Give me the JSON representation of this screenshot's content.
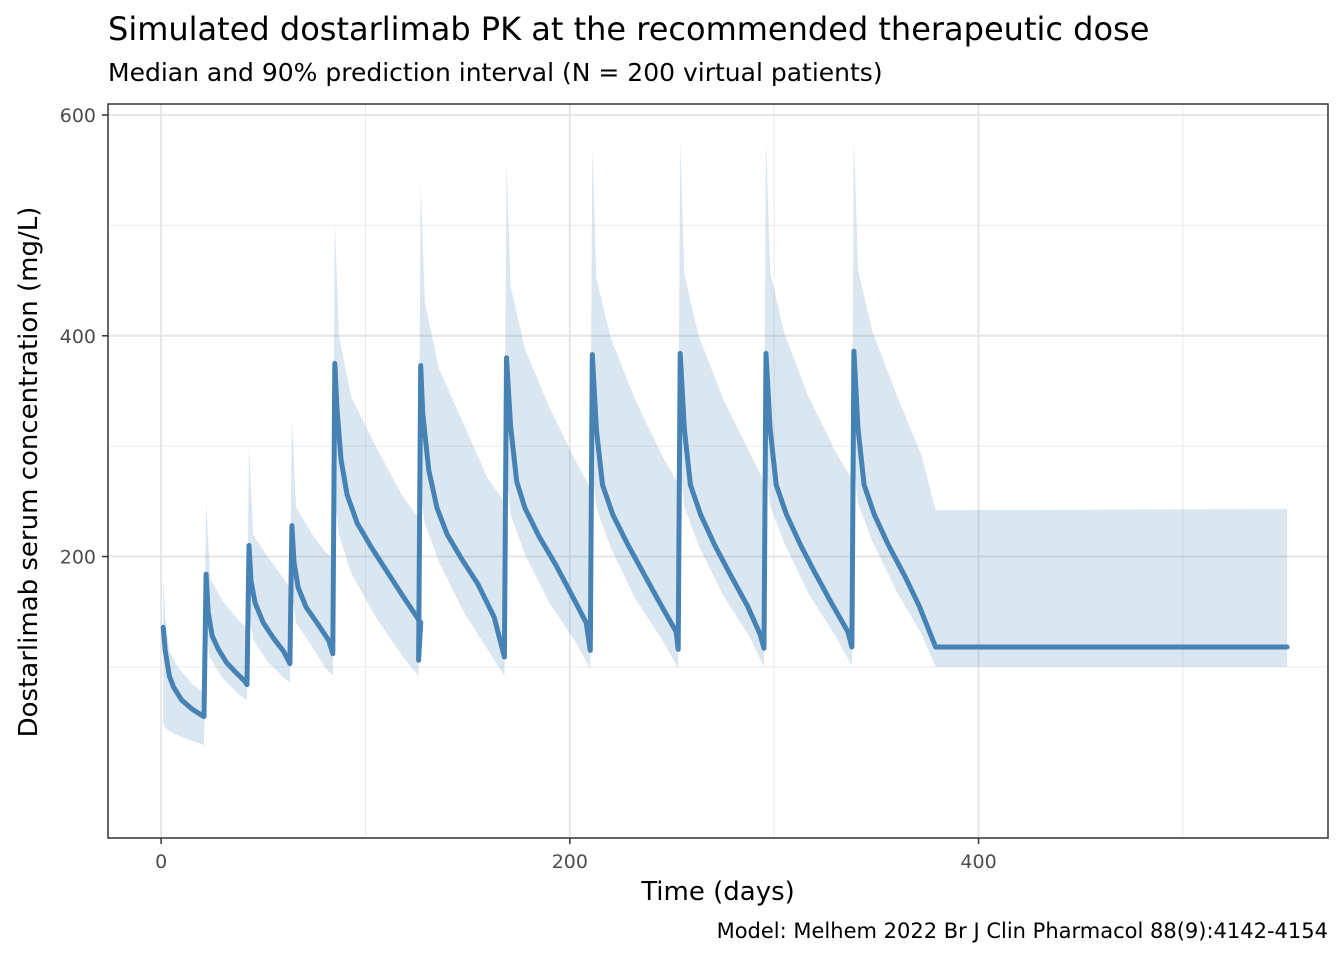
{
  "chart_data": {
    "type": "line",
    "title": "Simulated dostarlimab PK at the recommended therapeutic dose",
    "subtitle": "Median and 90% prediction interval (N = 200 virtual patients)",
    "xlabel": "Time (days)",
    "ylabel": "Dostarlimab serum concentration (mg/L)",
    "caption": "Model: Melhem 2022 Br J Clin Pharmacol 88(9):4142-4154",
    "xlim": [
      -26,
      571
    ],
    "ylim": [
      -55,
      610
    ],
    "x_ticks": [
      0,
      200,
      400
    ],
    "y_ticks": [
      200,
      400,
      600
    ],
    "grid": true,
    "legend": "none",
    "colors": {
      "line": "#4682B4",
      "band": "#4682B4",
      "band_opacity": 0.2
    },
    "series": [
      {
        "values": [
          [
            1,
            136
          ],
          [
            2,
            115
          ],
          [
            4,
            92
          ],
          [
            6,
            82
          ],
          [
            10,
            70
          ],
          [
            15,
            62
          ],
          [
            20,
            56
          ],
          [
            21,
            55
          ],
          [
            22,
            184
          ],
          [
            23,
            150
          ],
          [
            25,
            128
          ],
          [
            28,
            116
          ],
          [
            32,
            104
          ],
          [
            36,
            96
          ],
          [
            41,
            87
          ],
          [
            42,
            84
          ],
          [
            43,
            210
          ],
          [
            44,
            178
          ],
          [
            46,
            158
          ],
          [
            50,
            140
          ],
          [
            55,
            126
          ],
          [
            60,
            114
          ],
          [
            63,
            103
          ],
          [
            64,
            228
          ],
          [
            65,
            195
          ],
          [
            67,
            172
          ],
          [
            71,
            154
          ],
          [
            77,
            138
          ],
          [
            82,
            124
          ],
          [
            84,
            112
          ],
          [
            85,
            375
          ],
          [
            86,
            335
          ],
          [
            88,
            288
          ],
          [
            91,
            256
          ],
          [
            96,
            230
          ],
          [
            103,
            208
          ],
          [
            110,
            188
          ],
          [
            118,
            165
          ],
          [
            127,
            140
          ],
          [
            126,
            106
          ],
          [
            127,
            373
          ],
          [
            128,
            330
          ],
          [
            131,
            278
          ],
          [
            135,
            244
          ],
          [
            140,
            220
          ],
          [
            147,
            198
          ],
          [
            155,
            175
          ],
          [
            163,
            145
          ],
          [
            168,
            109
          ],
          [
            169,
            380
          ],
          [
            171,
            318
          ],
          [
            174,
            268
          ],
          [
            178,
            244
          ],
          [
            185,
            218
          ],
          [
            193,
            193
          ],
          [
            201,
            165
          ],
          [
            208,
            140
          ],
          [
            210,
            115
          ],
          [
            211,
            383
          ],
          [
            213,
            315
          ],
          [
            216,
            265
          ],
          [
            221,
            238
          ],
          [
            228,
            212
          ],
          [
            236,
            185
          ],
          [
            244,
            158
          ],
          [
            252,
            132
          ],
          [
            253,
            116
          ],
          [
            254,
            384
          ],
          [
            256,
            316
          ],
          [
            259,
            265
          ],
          [
            264,
            238
          ],
          [
            271,
            210
          ],
          [
            279,
            182
          ],
          [
            287,
            155
          ],
          [
            293,
            130
          ],
          [
            295,
            117
          ],
          [
            296,
            384
          ],
          [
            298,
            316
          ],
          [
            301,
            265
          ],
          [
            306,
            238
          ],
          [
            313,
            210
          ],
          [
            320,
            185
          ],
          [
            328,
            158
          ],
          [
            336,
            132
          ],
          [
            338,
            118
          ],
          [
            339,
            386
          ],
          [
            341,
            316
          ],
          [
            344,
            265
          ],
          [
            349,
            238
          ],
          [
            356,
            210
          ],
          [
            364,
            182
          ],
          [
            371,
            155
          ],
          [
            379,
            118
          ],
          [
            551,
            118
          ]
        ]
      }
    ],
    "band": [
      [
        1,
        183,
        50
      ],
      [
        2,
        145,
        45
      ],
      [
        4,
        115,
        42
      ],
      [
        8,
        100,
        38
      ],
      [
        15,
        85,
        33
      ],
      [
        20,
        78,
        30
      ],
      [
        21,
        76,
        29
      ],
      [
        22,
        250,
        130
      ],
      [
        24,
        180,
        108
      ],
      [
        30,
        160,
        90
      ],
      [
        38,
        142,
        75
      ],
      [
        42,
        135,
        70
      ],
      [
        43,
        300,
        150
      ],
      [
        45,
        220,
        125
      ],
      [
        52,
        200,
        105
      ],
      [
        60,
        180,
        90
      ],
      [
        63,
        172,
        86
      ],
      [
        64,
        325,
        170
      ],
      [
        66,
        245,
        140
      ],
      [
        74,
        220,
        118
      ],
      [
        80,
        205,
        100
      ],
      [
        84,
        198,
        92
      ],
      [
        85,
        505,
        255
      ],
      [
        87,
        400,
        220
      ],
      [
        93,
        345,
        185
      ],
      [
        105,
        300,
        145
      ],
      [
        118,
        255,
        110
      ],
      [
        126,
        235,
        92
      ],
      [
        127,
        540,
        260
      ],
      [
        129,
        430,
        230
      ],
      [
        136,
        370,
        195
      ],
      [
        148,
        320,
        150
      ],
      [
        160,
        270,
        115
      ],
      [
        168,
        250,
        92
      ],
      [
        169,
        558,
        272
      ],
      [
        171,
        445,
        238
      ],
      [
        178,
        388,
        202
      ],
      [
        190,
        335,
        158
      ],
      [
        203,
        286,
        122
      ],
      [
        210,
        262,
        98
      ],
      [
        211,
        572,
        280
      ],
      [
        213,
        452,
        244
      ],
      [
        220,
        398,
        208
      ],
      [
        232,
        342,
        162
      ],
      [
        245,
        292,
        125
      ],
      [
        253,
        266,
        99
      ],
      [
        254,
        578,
        284
      ],
      [
        256,
        456,
        245
      ],
      [
        263,
        400,
        210
      ],
      [
        275,
        343,
        165
      ],
      [
        288,
        294,
        127
      ],
      [
        295,
        268,
        100
      ],
      [
        296,
        580,
        285
      ],
      [
        298,
        458,
        246
      ],
      [
        305,
        402,
        212
      ],
      [
        317,
        344,
        166
      ],
      [
        330,
        295,
        128
      ],
      [
        338,
        270,
        101
      ],
      [
        339,
        580,
        285
      ],
      [
        341,
        460,
        248
      ],
      [
        348,
        404,
        214
      ],
      [
        360,
        346,
        168
      ],
      [
        372,
        292,
        130
      ],
      [
        379,
        242,
        100
      ],
      [
        551,
        243,
        100
      ]
    ]
  }
}
